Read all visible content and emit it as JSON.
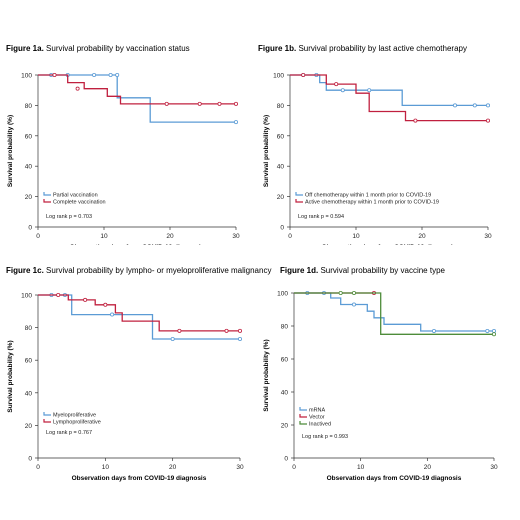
{
  "chart_data": [
    {
      "type": "line",
      "figure_label": "Figure 1a.",
      "title": "Survival probability by vaccination status",
      "xlabel": "Observation days from COVID-19 diagnosis",
      "ylabel": "Survival probability (%)",
      "xlim": [
        0,
        30
      ],
      "ylim": [
        0,
        100
      ],
      "xticks": [
        "0",
        "10",
        "20",
        "30"
      ],
      "yticks": [
        "0",
        "20",
        "40",
        "60",
        "80",
        "100"
      ],
      "legend": "bottom-left",
      "annotation": "Log rank p = 0.703",
      "series": [
        {
          "name": "Partial vaccination",
          "color": "#5b9bd5",
          "steps": [
            [
              0,
              100
            ],
            [
              12,
              100
            ],
            [
              12,
              85
            ],
            [
              17,
              85
            ],
            [
              17,
              69
            ],
            [
              30,
              69
            ]
          ],
          "censored": [
            [
              2,
              100
            ],
            [
              4.5,
              100
            ],
            [
              8.5,
              100
            ],
            [
              11,
              100
            ],
            [
              12,
              100
            ],
            [
              30,
              69
            ]
          ]
        },
        {
          "name": "Complete vaccination",
          "color": "#c0203f",
          "steps": [
            [
              0,
              100
            ],
            [
              4.5,
              100
            ],
            [
              4.5,
              95
            ],
            [
              7,
              95
            ],
            [
              7,
              91
            ],
            [
              10.5,
              91
            ],
            [
              10.5,
              86
            ],
            [
              12.5,
              86
            ],
            [
              12.5,
              81
            ],
            [
              30,
              81
            ]
          ],
          "censored": [
            [
              2.5,
              100
            ],
            [
              6,
              91
            ],
            [
              19.5,
              81
            ],
            [
              24.5,
              81
            ],
            [
              27.5,
              81
            ],
            [
              30,
              81
            ]
          ]
        }
      ]
    },
    {
      "type": "line",
      "figure_label": "Figure 1b.",
      "title": "Survival probability by last active chemotherapy",
      "xlabel": "Observation days from COVID-19 diagnosis",
      "ylabel": "Survival probability (%)",
      "xlim": [
        0,
        30
      ],
      "ylim": [
        0,
        100
      ],
      "xticks": [
        "0",
        "10",
        "20",
        "30"
      ],
      "yticks": [
        "0",
        "20",
        "40",
        "60",
        "80",
        "100"
      ],
      "legend": "bottom-left",
      "annotation": "Log rank p = 0.594",
      "series": [
        {
          "name": "Off chemotherapy within 1 month prior to COVID-19",
          "color": "#5b9bd5",
          "steps": [
            [
              0,
              100
            ],
            [
              4.5,
              100
            ],
            [
              4.5,
              95
            ],
            [
              5.5,
              95
            ],
            [
              5.5,
              90
            ],
            [
              17,
              90
            ],
            [
              17,
              80
            ],
            [
              30,
              80
            ]
          ],
          "censored": [
            [
              2,
              100
            ],
            [
              4,
              100
            ],
            [
              8,
              90
            ],
            [
              12,
              90
            ],
            [
              25,
              80
            ],
            [
              28,
              80
            ],
            [
              30,
              80
            ]
          ]
        },
        {
          "name": "Active chemotherapy within 1 month prior to COVID-19",
          "color": "#c0203f",
          "steps": [
            [
              0,
              100
            ],
            [
              5.5,
              100
            ],
            [
              5.5,
              94
            ],
            [
              10,
              94
            ],
            [
              10,
              88
            ],
            [
              12,
              88
            ],
            [
              12,
              76
            ],
            [
              17.5,
              76
            ],
            [
              17.5,
              70
            ],
            [
              30,
              70
            ]
          ],
          "censored": [
            [
              2,
              100
            ],
            [
              7,
              94
            ],
            [
              19,
              70
            ],
            [
              30,
              70
            ]
          ]
        }
      ]
    },
    {
      "type": "line",
      "figure_label": "Figure 1c.",
      "title": "Survival probability by lympho- or myeloproliferative malignancy",
      "xlabel": "Observation days from COVID-19 diagnosis",
      "ylabel": "Survival probability (%)",
      "xlim": [
        0,
        30
      ],
      "ylim": [
        0,
        100
      ],
      "xticks": [
        "0",
        "10",
        "20",
        "30"
      ],
      "yticks": [
        "0",
        "20",
        "40",
        "60",
        "80",
        "100"
      ],
      "legend": "bottom-left",
      "annotation": "Log rank p = 0.767",
      "series": [
        {
          "name": "Myeloproliferative",
          "color": "#5b9bd5",
          "steps": [
            [
              0,
              100
            ],
            [
              5,
              100
            ],
            [
              5,
              88
            ],
            [
              17,
              88
            ],
            [
              17,
              73
            ],
            [
              30,
              73
            ]
          ],
          "censored": [
            [
              2,
              100
            ],
            [
              4,
              100
            ],
            [
              11,
              88
            ],
            [
              20,
              73
            ],
            [
              30,
              73
            ]
          ]
        },
        {
          "name": "Lymphoproliferative",
          "color": "#c0203f",
          "steps": [
            [
              0,
              100
            ],
            [
              4.5,
              100
            ],
            [
              4.5,
              97
            ],
            [
              8.5,
              97
            ],
            [
              8.5,
              94
            ],
            [
              11.5,
              94
            ],
            [
              11.5,
              89
            ],
            [
              12.5,
              89
            ],
            [
              12.5,
              84
            ],
            [
              18,
              84
            ],
            [
              18,
              78
            ],
            [
              30,
              78
            ]
          ],
          "censored": [
            [
              3,
              100
            ],
            [
              7,
              97
            ],
            [
              10,
              94
            ],
            [
              21,
              78
            ],
            [
              28,
              78
            ],
            [
              30,
              78
            ]
          ]
        }
      ]
    },
    {
      "type": "line",
      "figure_label": "Figure 1d.",
      "title": "Survival probability by vaccine type",
      "xlabel": "Observation days from COVID-19 diagnosis",
      "ylabel": "Survival probability (%)",
      "xlim": [
        0,
        30
      ],
      "ylim": [
        0,
        100
      ],
      "xticks": [
        "0",
        "10",
        "20",
        "30"
      ],
      "yticks": [
        "0",
        "20",
        "40",
        "60",
        "80",
        "100"
      ],
      "legend": "bottom-left",
      "annotation": "Log rank p = 0.993",
      "series": [
        {
          "name": "mRNA",
          "color": "#5b9bd5",
          "steps": [
            [
              0,
              100
            ],
            [
              5.5,
              100
            ],
            [
              5.5,
              97
            ],
            [
              7,
              97
            ],
            [
              7,
              93
            ],
            [
              11,
              93
            ],
            [
              11,
              89
            ],
            [
              12,
              89
            ],
            [
              12,
              85
            ],
            [
              13.5,
              85
            ],
            [
              13.5,
              81
            ],
            [
              19,
              81
            ],
            [
              19,
              77
            ],
            [
              30,
              77
            ]
          ],
          "censored": [
            [
              2,
              100
            ],
            [
              4.5,
              100
            ],
            [
              9,
              93
            ],
            [
              21,
              77
            ],
            [
              29,
              77
            ],
            [
              30,
              77
            ]
          ]
        },
        {
          "name": "Vector",
          "color": "#c0203f",
          "steps": [
            [
              0,
              100
            ],
            [
              12,
              100
            ]
          ],
          "censored": [
            [
              12,
              100
            ]
          ]
        },
        {
          "name": "Inactived",
          "color": "#4e8c3a",
          "steps": [
            [
              0,
              100
            ],
            [
              13,
              100
            ],
            [
              13,
              75
            ],
            [
              30,
              75
            ]
          ],
          "censored": [
            [
              7,
              100
            ],
            [
              9,
              100
            ],
            [
              30,
              75
            ]
          ]
        }
      ]
    }
  ]
}
